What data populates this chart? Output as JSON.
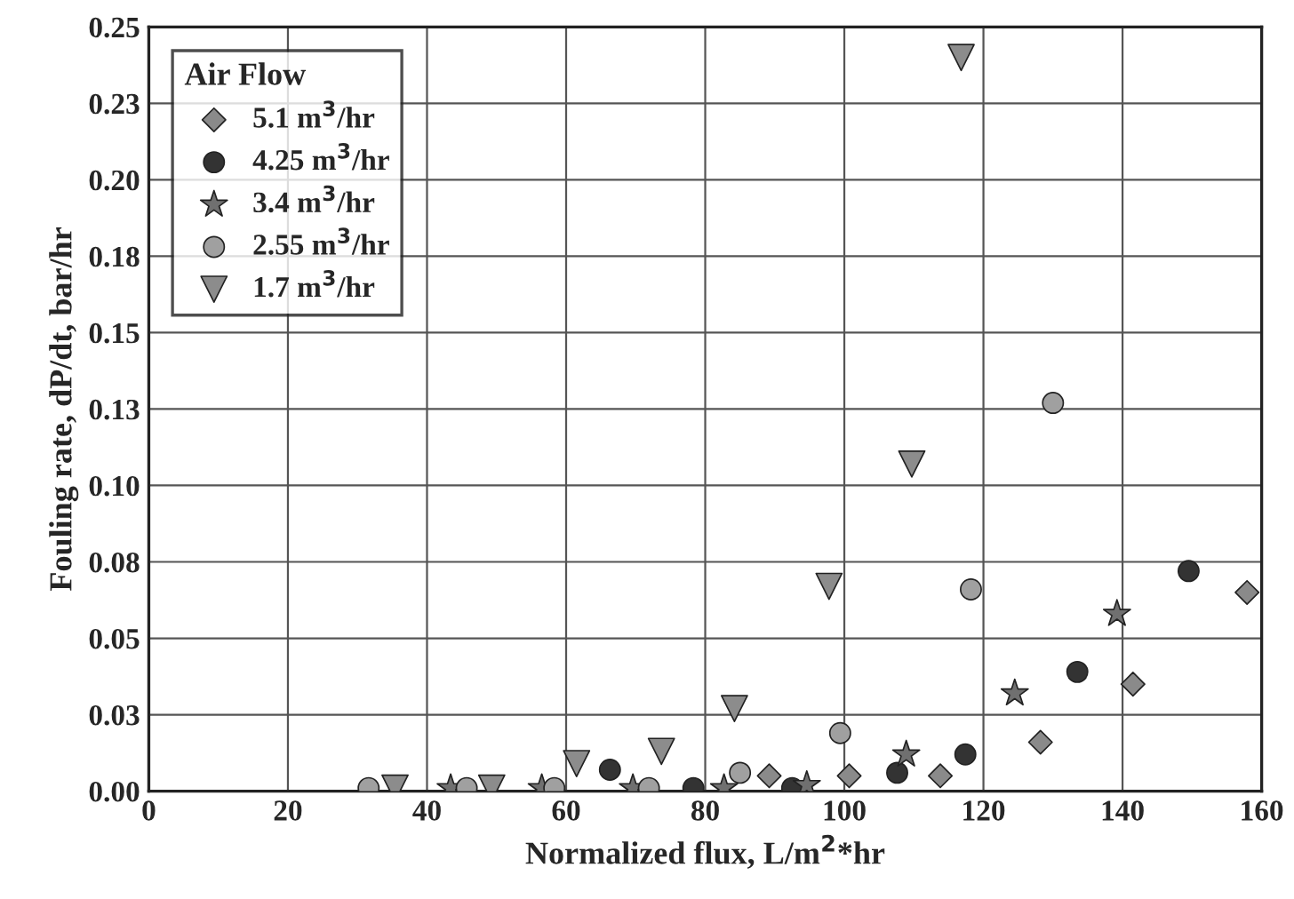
{
  "chart_data": {
    "type": "scatter",
    "xlabel": "Normalized flux, L/m$^{2}$*hr",
    "ylabel": "Fouling rate, dP/dt, bar/hr",
    "legend_title": "Air Flow",
    "legend": "top left",
    "grid": true,
    "xlim": [
      0,
      160
    ],
    "xticks": [
      0,
      20,
      40,
      60,
      80,
      100,
      120,
      140,
      160
    ],
    "ylim": [
      0,
      0.25
    ],
    "yticks": [
      {
        "value": 0,
        "label": "0.00"
      },
      {
        "value": 0.025,
        "label": "0.03"
      },
      {
        "value": 0.05,
        "label": "0.05"
      },
      {
        "value": 0.075,
        "label": "0.08"
      },
      {
        "value": 0.1,
        "label": "0.10"
      },
      {
        "value": 0.125,
        "label": "0.13"
      },
      {
        "value": 0.15,
        "label": "0.15"
      },
      {
        "value": 0.175,
        "label": "0.18"
      },
      {
        "value": 0.2,
        "label": "0.20"
      },
      {
        "value": 0.225,
        "label": "0.23"
      },
      {
        "value": 0.25,
        "label": "0.25"
      }
    ],
    "series": [
      {
        "name": "5.1 m$^{3}$/hr",
        "color": "#8a8a8a",
        "marker": "diamond",
        "x": [
          89.2,
          100.7,
          113.8,
          128.2,
          141.5,
          157.9
        ],
        "values": [
          0.005,
          0.005,
          0.005,
          0.016,
          0.035,
          0.065
        ]
      },
      {
        "name": "4.25 m$^{3}$/hr",
        "color": "#333333",
        "marker": "circle",
        "x": [
          66.3,
          78.3,
          92.5,
          107.6,
          117.4,
          133.5,
          149.5
        ],
        "values": [
          0.007,
          0.001,
          0.001,
          0.006,
          0.012,
          0.039,
          0.072
        ]
      },
      {
        "name": "3.4 m$^{3}$/hr",
        "color": "#707070",
        "marker": "star",
        "x": [
          43.4,
          56.5,
          69.6,
          82.7,
          94.6,
          108.9,
          124.5,
          139.2
        ],
        "values": [
          0.001,
          0.001,
          0.001,
          0.001,
          0.002,
          0.012,
          0.032,
          0.058
        ]
      },
      {
        "name": "2.55 m$^{3}$/hr",
        "color": "#a0a0a0",
        "marker": "circle",
        "x": [
          31.6,
          45.7,
          58.3,
          71.9,
          85.0,
          99.4,
          118.2,
          130.0
        ],
        "values": [
          0.001,
          0.001,
          0.001,
          0.001,
          0.006,
          0.019,
          0.066,
          0.127
        ]
      },
      {
        "name": "1.7 m$^{3}$/hr",
        "color": "#8c8c8c",
        "marker": "triangle",
        "x": [
          35.4,
          49.3,
          61.5,
          73.7,
          84.2,
          97.8,
          109.7,
          116.8
        ],
        "values": [
          0.001,
          0.001,
          0.009,
          0.013,
          0.027,
          0.067,
          0.107,
          0.24
        ]
      }
    ]
  }
}
